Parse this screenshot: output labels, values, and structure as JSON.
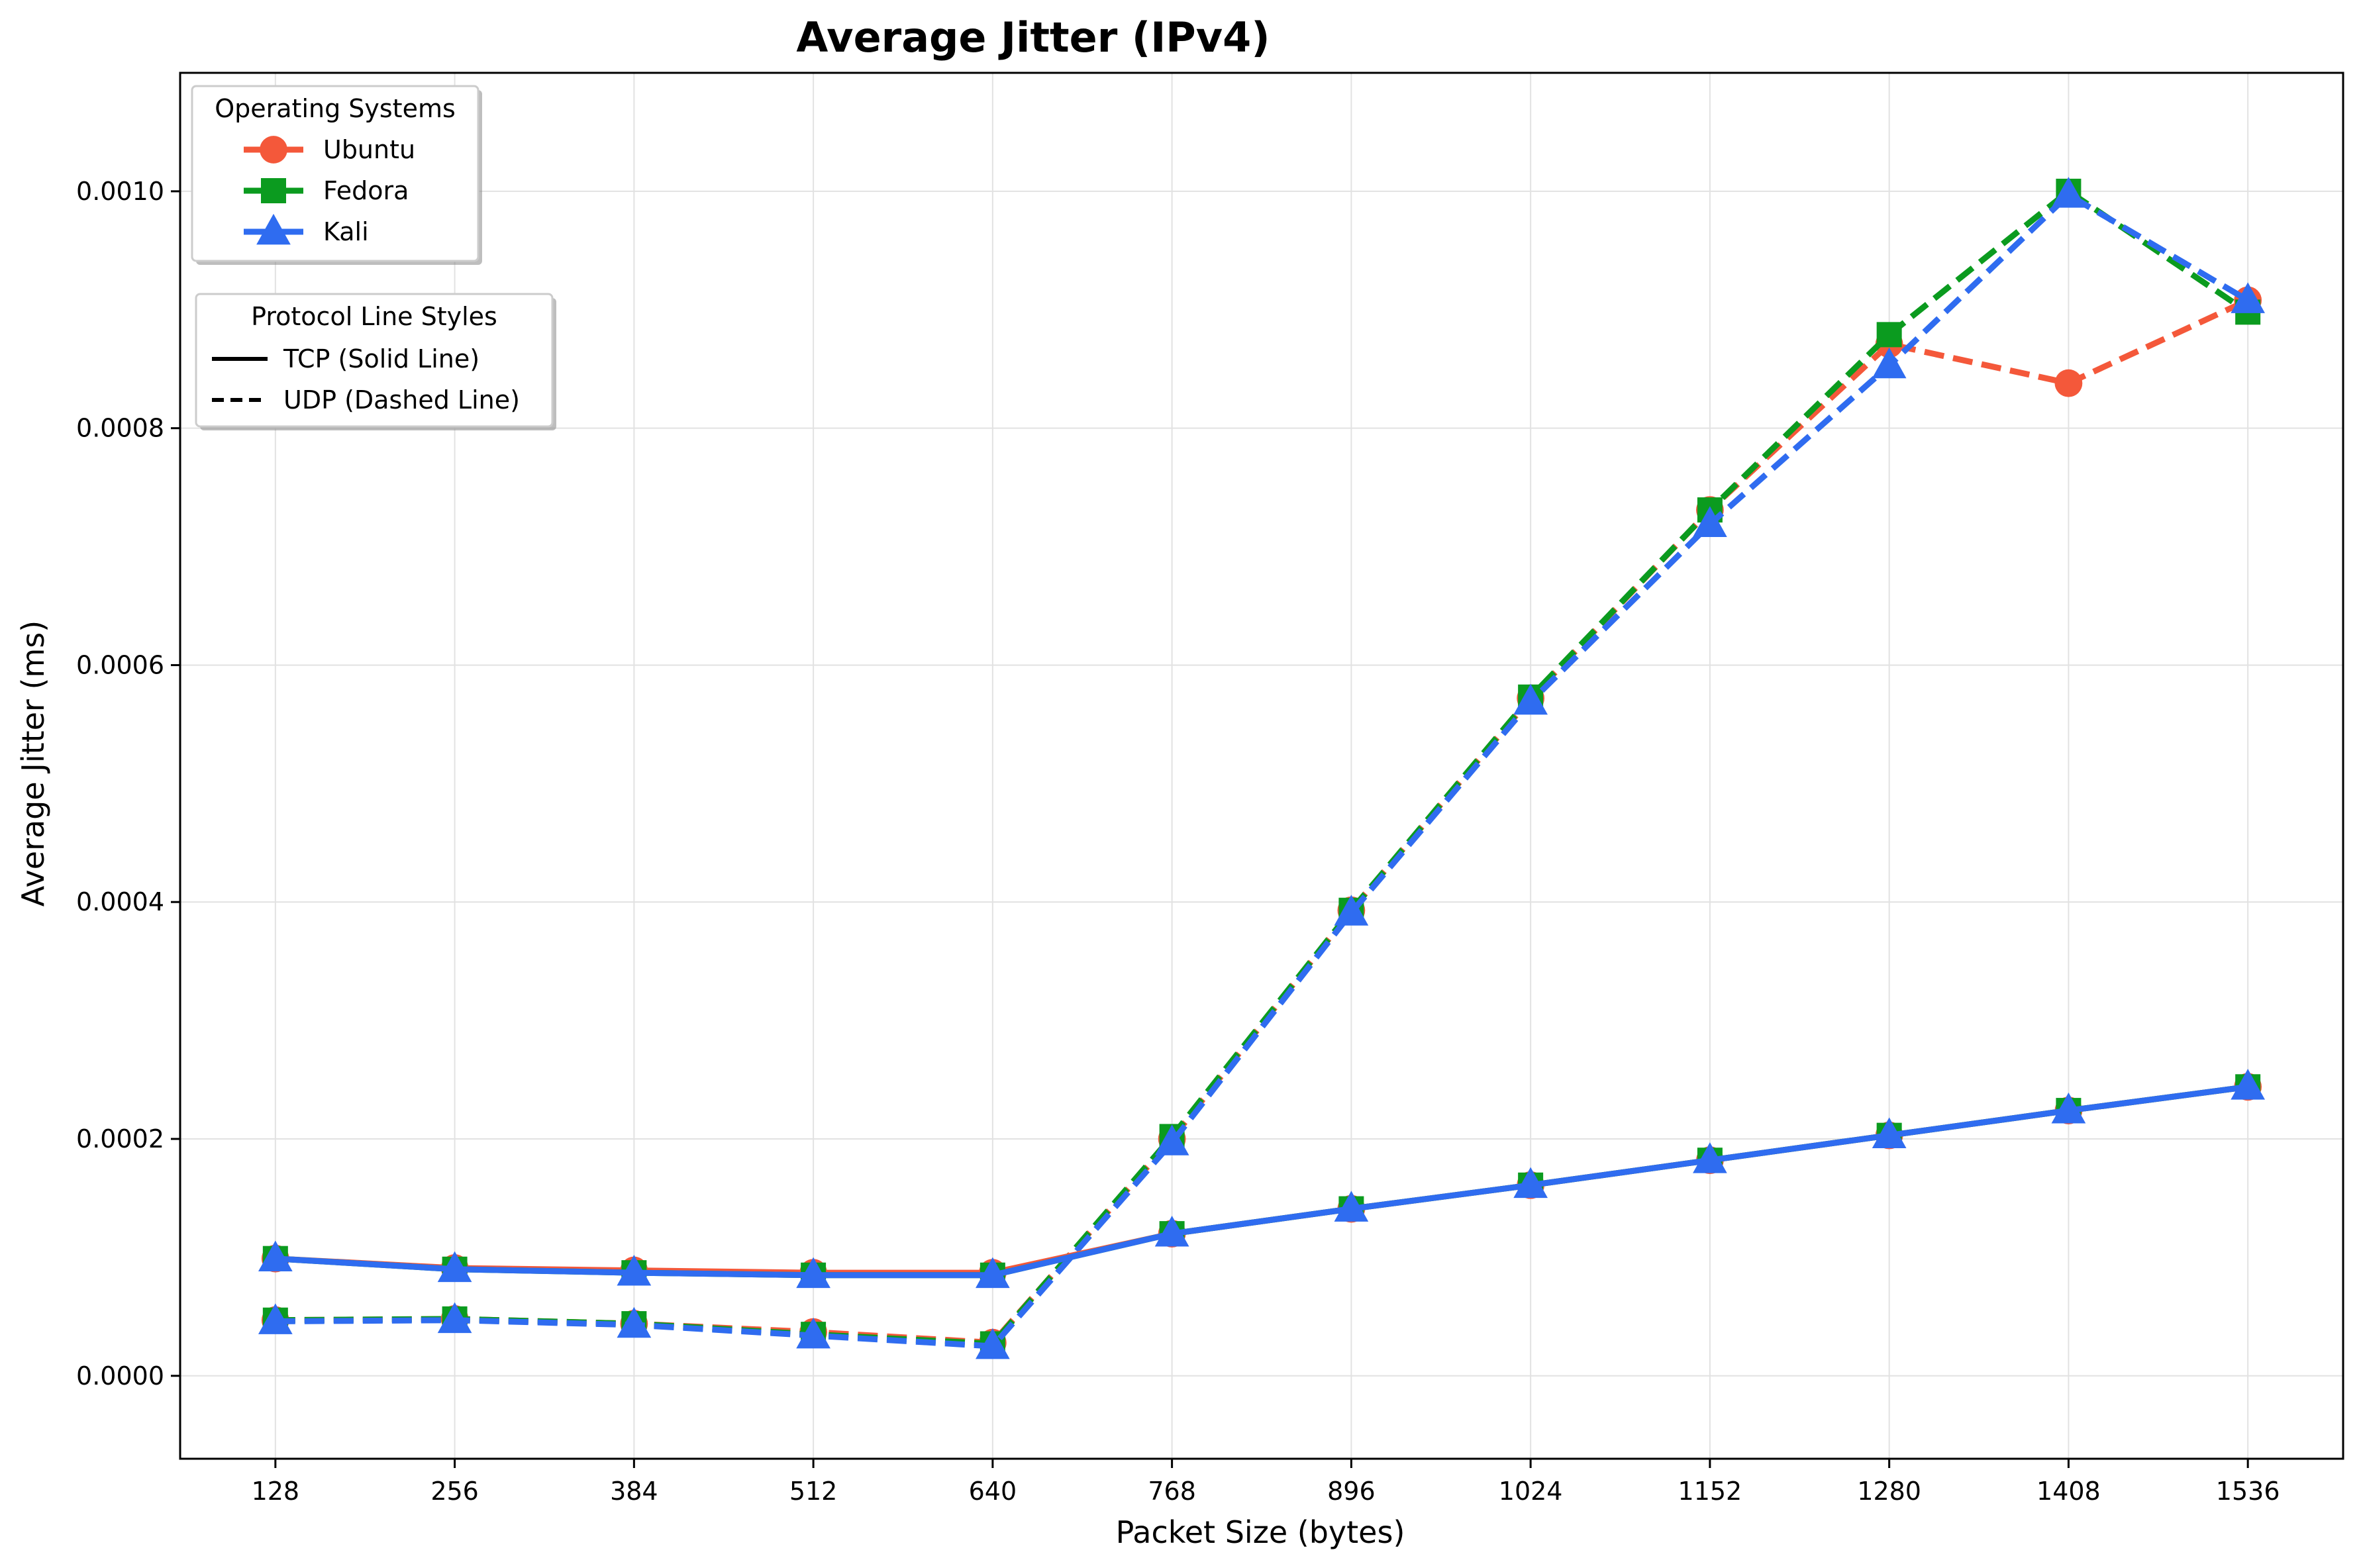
{
  "chart_data": {
    "type": "line",
    "title": "Average Jitter (IPv4)",
    "xlabel": "Packet Size (bytes)",
    "ylabel": "Average Jitter (ms)",
    "x": [
      128,
      256,
      384,
      512,
      640,
      768,
      896,
      1024,
      1152,
      1280,
      1408,
      1536
    ],
    "x_tick_labels": [
      "128",
      "256",
      "384",
      "512",
      "640",
      "768",
      "896",
      "1024",
      "1152",
      "1280",
      "1408",
      "1536"
    ],
    "y_tick_values": [
      0.0,
      0.0002,
      0.0004,
      0.0006,
      0.0008,
      0.001
    ],
    "y_tick_labels": [
      "0.0000",
      "0.0002",
      "0.0004",
      "0.0006",
      "0.0008",
      "0.0010"
    ],
    "ylim": [
      -7e-05,
      0.0011
    ],
    "xlim": [
      60,
      1604
    ],
    "grid": true,
    "legends": [
      {
        "title": "Operating Systems",
        "placement": "top-left",
        "entries": [
          {
            "label": "Ubuntu",
            "color": "#f4583a",
            "marker": "circle"
          },
          {
            "label": "Fedora",
            "color": "#0b9b1f",
            "marker": "square"
          },
          {
            "label": "Kali",
            "color": "#2f6cf0",
            "marker": "triangle"
          }
        ]
      },
      {
        "title": "Protocol Line Styles",
        "placement": "upper-left",
        "entries": [
          {
            "label": "TCP (Solid Line)",
            "style": "solid"
          },
          {
            "label": "UDP (Dashed Line)",
            "style": "dashed"
          }
        ]
      }
    ],
    "series": [
      {
        "os": "Ubuntu",
        "protocol": "TCP",
        "color": "#f4583a",
        "marker": "circle",
        "style": "solid",
        "values": [
          9.9e-05,
          9.1e-05,
          8.9e-05,
          8.7e-05,
          8.7e-05,
          0.00012,
          0.000141,
          0.000161,
          0.000182,
          0.000203,
          0.000224,
          0.000244
        ]
      },
      {
        "os": "Fedora",
        "protocol": "TCP",
        "color": "#0b9b1f",
        "marker": "square",
        "style": "solid",
        "values": [
          9.9e-05,
          9e-05,
          8.7e-05,
          8.5e-05,
          8.5e-05,
          0.00012,
          0.000141,
          0.000161,
          0.000182,
          0.000203,
          0.000224,
          0.000244
        ]
      },
      {
        "os": "Kali",
        "protocol": "TCP",
        "color": "#2f6cf0",
        "marker": "triangle",
        "style": "solid",
        "values": [
          9.9e-05,
          9e-05,
          8.7e-05,
          8.5e-05,
          8.5e-05,
          0.00012,
          0.000141,
          0.000161,
          0.000182,
          0.000203,
          0.000224,
          0.000244
        ]
      },
      {
        "os": "Ubuntu",
        "protocol": "UDP",
        "color": "#f4583a",
        "marker": "circle",
        "style": "dashed",
        "values": [
          4.7e-05,
          4.8e-05,
          4.4e-05,
          3.7e-05,
          2.8e-05,
          0.0002,
          0.000393,
          0.000572,
          0.000731,
          0.000871,
          0.000838,
          0.000908
        ]
      },
      {
        "os": "Fedora",
        "protocol": "UDP",
        "color": "#0b9b1f",
        "marker": "square",
        "style": "dashed",
        "values": [
          4.7e-05,
          4.8e-05,
          4.4e-05,
          3.5e-05,
          2.7e-05,
          0.000202,
          0.000393,
          0.000573,
          0.000731,
          0.000879,
          0.001,
          0.000898
        ]
      },
      {
        "os": "Kali",
        "protocol": "UDP",
        "color": "#2f6cf0",
        "marker": "triangle",
        "style": "dashed",
        "values": [
          4.6e-05,
          4.7e-05,
          4.3e-05,
          3.4e-05,
          2.5e-05,
          0.000197,
          0.000391,
          0.000569,
          0.000719,
          0.000853,
          0.000997,
          0.000908
        ]
      }
    ]
  }
}
